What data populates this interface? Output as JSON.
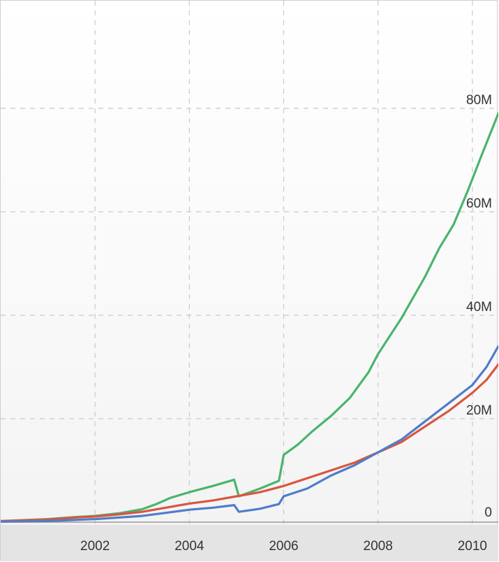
{
  "chart_data": {
    "type": "line",
    "title": "",
    "xlabel": "",
    "ylabel": "",
    "xlim": [
      2000.0,
      2010.55
    ],
    "ylim": [
      0,
      100
    ],
    "x_ticks": [
      2002,
      2004,
      2006,
      2008,
      2010
    ],
    "x_tick_labels": [
      "2002",
      "2004",
      "2006",
      "2008",
      "2010"
    ],
    "y_ticks": [
      0,
      20,
      40,
      60,
      80
    ],
    "y_tick_labels": [
      "0",
      "20M",
      "40M",
      "60M",
      "80M"
    ],
    "grid": true,
    "legend": "none",
    "series": [
      {
        "color": "#49b56c",
        "points": [
          [
            2000.0,
            0.2
          ],
          [
            2001.0,
            0.6
          ],
          [
            2001.6,
            1.0
          ],
          [
            2002.0,
            1.2
          ],
          [
            2002.5,
            1.7
          ],
          [
            2003.0,
            2.5
          ],
          [
            2003.3,
            3.5
          ],
          [
            2003.6,
            4.7
          ],
          [
            2004.0,
            5.8
          ],
          [
            2004.5,
            7.0
          ],
          [
            2004.95,
            8.2
          ],
          [
            2005.05,
            5.0
          ],
          [
            2005.5,
            6.5
          ],
          [
            2005.9,
            8.0
          ],
          [
            2006.0,
            13.0
          ],
          [
            2006.3,
            15.0
          ],
          [
            2006.6,
            17.5
          ],
          [
            2007.0,
            20.5
          ],
          [
            2007.4,
            24.0
          ],
          [
            2007.8,
            29.0
          ],
          [
            2008.0,
            32.5
          ],
          [
            2008.5,
            39.5
          ],
          [
            2009.0,
            47.5
          ],
          [
            2009.3,
            53.0
          ],
          [
            2009.6,
            57.5
          ],
          [
            2009.9,
            64.0
          ],
          [
            2010.2,
            71.0
          ],
          [
            2010.55,
            79.0
          ]
        ]
      },
      {
        "color": "#d9563f",
        "points": [
          [
            2000.0,
            0.2
          ],
          [
            2001.0,
            0.5
          ],
          [
            2001.6,
            0.9
          ],
          [
            2002.0,
            1.1
          ],
          [
            2002.5,
            1.5
          ],
          [
            2003.0,
            2.0
          ],
          [
            2003.5,
            2.8
          ],
          [
            2004.0,
            3.6
          ],
          [
            2004.5,
            4.2
          ],
          [
            2005.0,
            5.0
          ],
          [
            2005.5,
            5.8
          ],
          [
            2006.0,
            7.0
          ],
          [
            2006.5,
            8.5
          ],
          [
            2007.0,
            10.0
          ],
          [
            2007.5,
            11.5
          ],
          [
            2008.0,
            13.5
          ],
          [
            2008.5,
            15.5
          ],
          [
            2009.0,
            18.5
          ],
          [
            2009.5,
            21.5
          ],
          [
            2010.0,
            25.0
          ],
          [
            2010.3,
            27.5
          ],
          [
            2010.55,
            30.5
          ]
        ]
      },
      {
        "color": "#4f7dc9",
        "points": [
          [
            2000.0,
            0.1
          ],
          [
            2001.0,
            0.2
          ],
          [
            2002.0,
            0.6
          ],
          [
            2003.0,
            1.2
          ],
          [
            2003.5,
            1.8
          ],
          [
            2004.0,
            2.4
          ],
          [
            2004.5,
            2.8
          ],
          [
            2004.95,
            3.3
          ],
          [
            2005.05,
            2.0
          ],
          [
            2005.5,
            2.6
          ],
          [
            2005.9,
            3.5
          ],
          [
            2006.0,
            5.0
          ],
          [
            2006.5,
            6.5
          ],
          [
            2007.0,
            9.0
          ],
          [
            2007.5,
            11.0
          ],
          [
            2008.0,
            13.5
          ],
          [
            2008.5,
            16.0
          ],
          [
            2009.0,
            19.5
          ],
          [
            2009.5,
            23.0
          ],
          [
            2010.0,
            26.5
          ],
          [
            2010.3,
            30.0
          ],
          [
            2010.55,
            34.0
          ]
        ]
      }
    ]
  }
}
